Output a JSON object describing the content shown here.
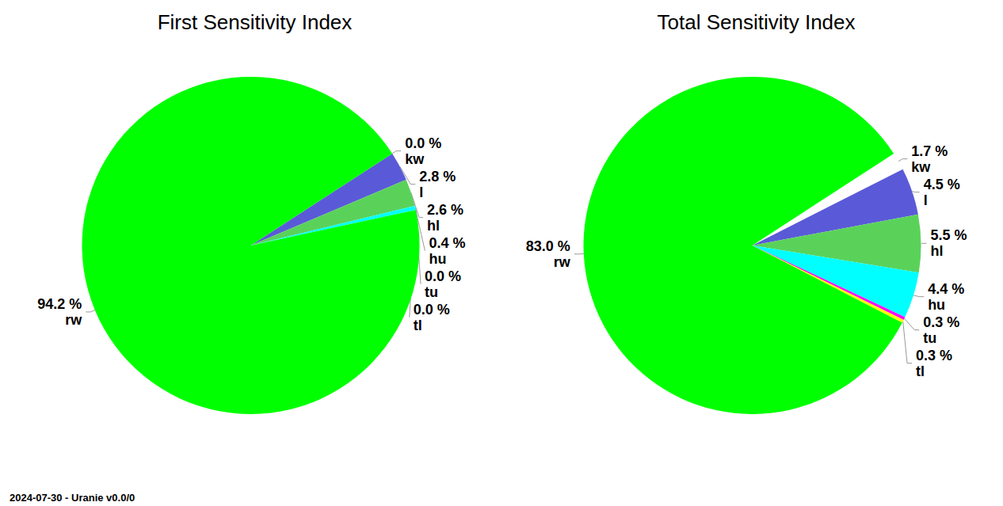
{
  "chart_data": [
    {
      "type": "pie",
      "title": "First Sensitivity Index",
      "categories": [
        "kw",
        "l",
        "hl",
        "hu",
        "tu",
        "tl",
        "rw"
      ],
      "values": [
        0.0,
        2.8,
        2.6,
        0.4,
        0.0,
        0.0,
        94.2
      ],
      "value_labels": [
        "0.0 %",
        "2.8 %",
        "2.6 %",
        "0.4 %",
        "0.0 %",
        "0.0 %",
        "94.2 %"
      ],
      "colors": [
        "#ffffff",
        "#5a5ad8",
        "#5ad25a",
        "#00ffff",
        "#ff00ff",
        "#ffff00",
        "#00ff00"
      ]
    },
    {
      "type": "pie",
      "title": "Total Sensitivity Index",
      "categories": [
        "kw",
        "l",
        "hl",
        "hu",
        "tu",
        "tl",
        "rw"
      ],
      "values": [
        1.7,
        4.5,
        5.5,
        4.4,
        0.3,
        0.3,
        83.0
      ],
      "value_labels": [
        "1.7 %",
        "4.5 %",
        "5.5 %",
        "4.4 %",
        "0.3 %",
        "0.3 %",
        "83.0 %"
      ],
      "colors": [
        "#ffffff",
        "#5a5ad8",
        "#5ad25a",
        "#00ffff",
        "#ff00ff",
        "#ffff00",
        "#00ff00"
      ]
    }
  ],
  "footer": "2024-07-30 - Uranie v0.0/0"
}
